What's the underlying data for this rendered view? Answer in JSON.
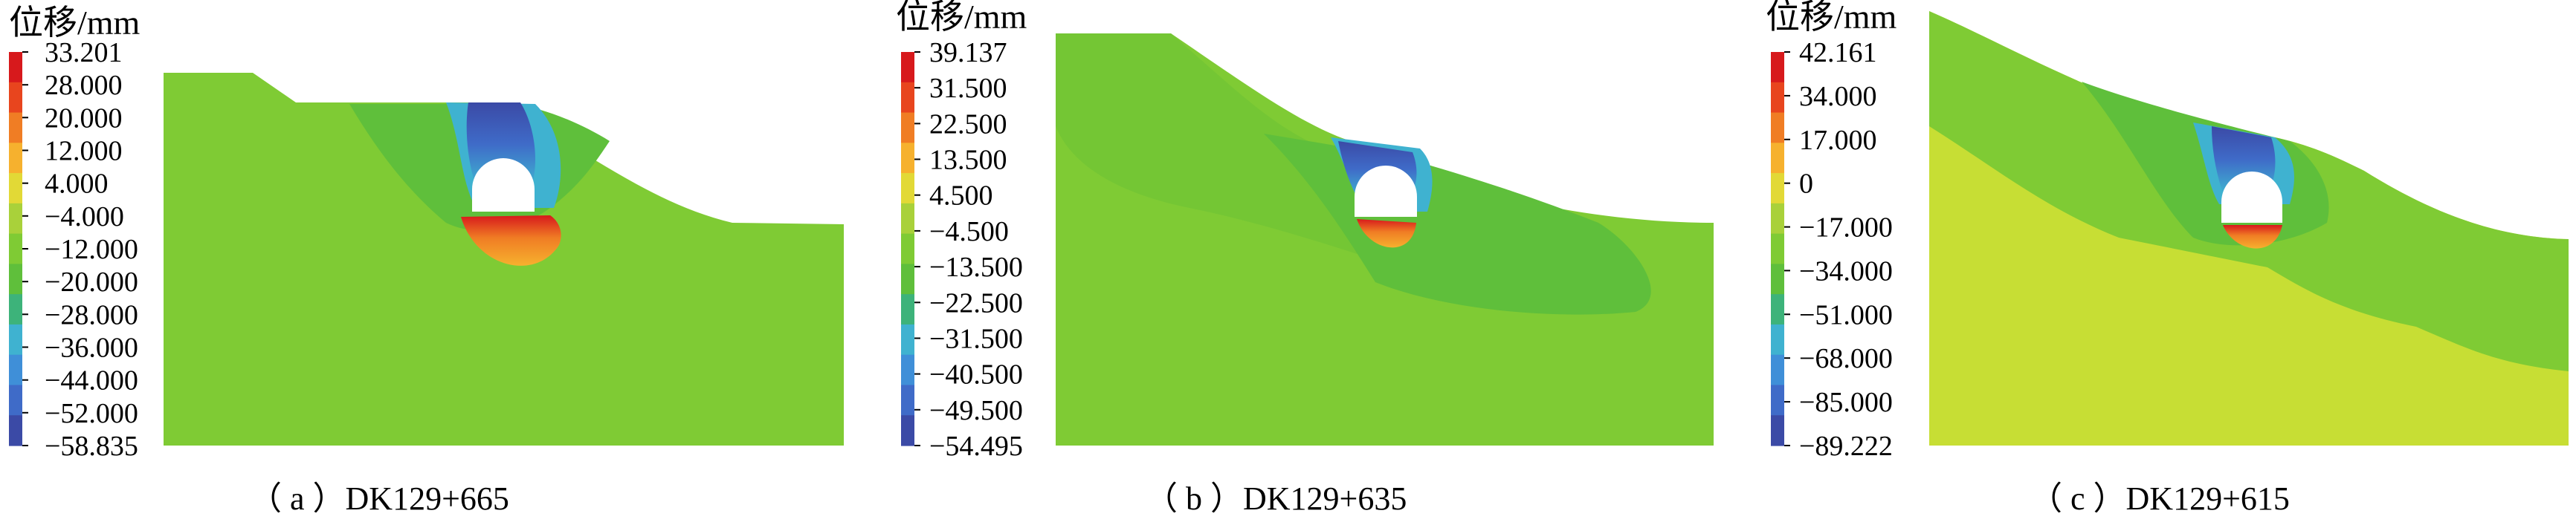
{
  "figure": {
    "panels": [
      {
        "id": "a",
        "caption": "（ a ）DK129+665",
        "legend_title": "位移/mm",
        "legend_labels": [
          "33.201",
          "28.000",
          "20.000",
          "12.000",
          "4.000",
          "−4.000",
          "−12.000",
          "−20.000",
          "−28.000",
          "−36.000",
          "−44.000",
          "−52.000",
          "−58.835"
        ]
      },
      {
        "id": "b",
        "caption": "（ b ）DK129+635",
        "legend_title": "位移/mm",
        "legend_labels": [
          "39.137",
          "31.500",
          "22.500",
          "13.500",
          "4.500",
          "−4.500",
          "−13.500",
          "−22.500",
          "−31.500",
          "−40.500",
          "−49.500",
          "−54.495"
        ]
      },
      {
        "id": "c",
        "caption": "（ c ）DK129+615",
        "legend_title": "位移/mm",
        "legend_labels": [
          "42.161",
          "34.000",
          "17.000",
          "0",
          "−17.000",
          "−34.000",
          "−51.000",
          "−68.000",
          "−85.000",
          "−89.222"
        ]
      }
    ],
    "colormap": [
      "#d7191c",
      "#e8451e",
      "#f07d24",
      "#f6b12e",
      "#e2d936",
      "#a9d13a",
      "#7fcb34",
      "#5fbf3b",
      "#3db37a",
      "#3fb2d0",
      "#3f8fd8",
      "#3f6bc8",
      "#3b4aa6"
    ]
  },
  "chart_data": [
    {
      "type": "heatmap",
      "title": "（ a ）DK129+665",
      "colorbar_label": "位移/mm",
      "colorbar_ticks": [
        33.201,
        28.0,
        20.0,
        12.0,
        4.0,
        -4.0,
        -12.0,
        -20.0,
        -28.0,
        -36.0,
        -44.0,
        -52.0,
        -58.835
      ],
      "range": [
        -58.835,
        33.201
      ],
      "background_value": 4.0,
      "zones": [
        {
          "location": "crown-above-tunnel",
          "value": -58.835
        },
        {
          "location": "invert-below-tunnel",
          "value": 33.201
        }
      ]
    },
    {
      "type": "heatmap",
      "title": "（ b ）DK129+635",
      "colorbar_label": "位移/mm",
      "colorbar_ticks": [
        39.137,
        31.5,
        22.5,
        13.5,
        4.5,
        -4.5,
        -13.5,
        -22.5,
        -31.5,
        -40.5,
        -49.5,
        -54.495
      ],
      "range": [
        -54.495,
        39.137
      ],
      "background_value": -4.5,
      "zones": [
        {
          "location": "crown-above-tunnel",
          "value": -54.495
        },
        {
          "location": "invert-below-tunnel",
          "value": 39.137
        }
      ]
    },
    {
      "type": "heatmap",
      "title": "（ c ）DK129+615",
      "colorbar_label": "位移/mm",
      "colorbar_ticks": [
        42.161,
        34.0,
        17.0,
        0,
        -17.0,
        -34.0,
        -51.0,
        -68.0,
        -85.0,
        -89.222
      ],
      "range": [
        -89.222,
        42.161
      ],
      "background_value": 0,
      "zones": [
        {
          "location": "crown-above-tunnel",
          "value": -89.222
        },
        {
          "location": "invert-below-tunnel",
          "value": 42.161
        }
      ]
    }
  ]
}
